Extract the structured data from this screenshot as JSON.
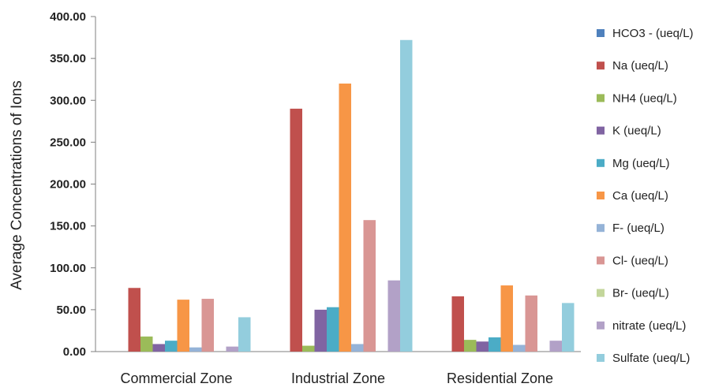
{
  "chart_data": {
    "type": "bar",
    "title": "",
    "xlabel": "",
    "ylabel": "Average Concentrations of Ions",
    "ylim": [
      0,
      400
    ],
    "yticks": [
      "0.00",
      "50.00",
      "100.00",
      "150.00",
      "200.00",
      "250.00",
      "300.00",
      "350.00",
      "400.00"
    ],
    "grid": false,
    "legend_position": "right",
    "categories": [
      "Commercial Zone",
      "Industrial Zone",
      "Residential Zone"
    ],
    "series": [
      {
        "name": "HCO3 - (ueq/L)",
        "color": "#4F81BD",
        "values": [
          0,
          0,
          0
        ]
      },
      {
        "name": "Na (ueq/L)",
        "color": "#C0504D",
        "values": [
          76,
          290,
          66
        ]
      },
      {
        "name": "NH4 (ueq/L)",
        "color": "#9BBB59",
        "values": [
          18,
          7,
          14
        ]
      },
      {
        "name": "K  (ueq/L)",
        "color": "#8064A2",
        "values": [
          9,
          50,
          12
        ]
      },
      {
        "name": "Mg (ueq/L)",
        "color": "#4BACC6",
        "values": [
          13,
          53,
          17
        ]
      },
      {
        "name": "Ca  (ueq/L)",
        "color": "#F79646",
        "values": [
          62,
          320,
          79
        ]
      },
      {
        "name": "F-  (ueq/L)",
        "color": "#95B3D7",
        "values": [
          5,
          9,
          8
        ]
      },
      {
        "name": "Cl-  (ueq/L)",
        "color": "#D99694",
        "values": [
          63,
          157,
          67
        ]
      },
      {
        "name": "Br-  (ueq/L)",
        "color": "#C3D69B",
        "values": [
          0,
          0,
          0
        ]
      },
      {
        "name": "nitrate (ueq/L)",
        "color": "#B2A1C7",
        "values": [
          6,
          85,
          13
        ]
      },
      {
        "name": "Sulfate  (ueq/L)",
        "color": "#93CDDD",
        "values": [
          41,
          372,
          58
        ]
      }
    ]
  }
}
